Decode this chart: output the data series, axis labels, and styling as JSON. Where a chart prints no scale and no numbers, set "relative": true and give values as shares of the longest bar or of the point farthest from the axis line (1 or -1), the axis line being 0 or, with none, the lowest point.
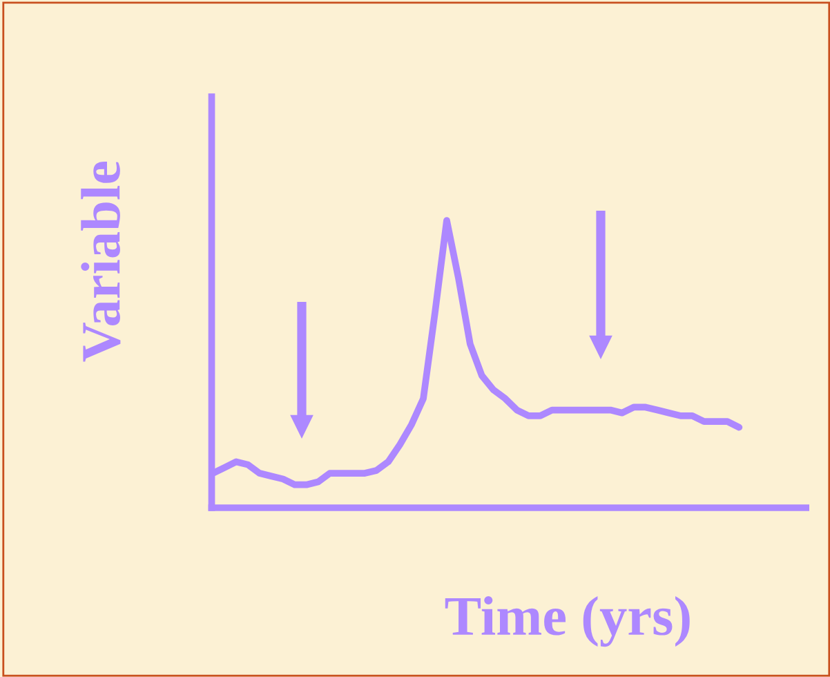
{
  "chart_data": {
    "type": "line",
    "xlabel": "Time (yrs)",
    "ylabel": "Variable",
    "relative": true,
    "categories": [
      null,
      null,
      null,
      null,
      null,
      null,
      null,
      null,
      null,
      null,
      null,
      null,
      null,
      null,
      null,
      null,
      null,
      null,
      null,
      null,
      null,
      null,
      null,
      null,
      null,
      null,
      null,
      null,
      null,
      null,
      null,
      null,
      null,
      null,
      null,
      null,
      null,
      null,
      null,
      null,
      null,
      null,
      null,
      null,
      null,
      null
    ],
    "series": [
      {
        "color": "#ad88ff",
        "values": [
          0.12,
          0.14,
          0.16,
          0.15,
          0.12,
          0.11,
          0.1,
          0.08,
          0.08,
          0.09,
          0.12,
          0.12,
          0.12,
          0.12,
          0.13,
          0.16,
          0.22,
          0.29,
          0.38,
          0.68,
          1,
          0.8,
          0.57,
          0.46,
          0.41,
          0.38,
          0.34,
          0.32,
          0.32,
          0.34,
          0.34,
          0.34,
          0.34,
          0.34,
          0.34,
          0.33,
          0.35,
          0.35,
          0.34,
          0.33,
          0.32,
          0.32,
          0.3,
          0.3,
          0.3,
          0.28
        ]
      }
    ]
  }
}
